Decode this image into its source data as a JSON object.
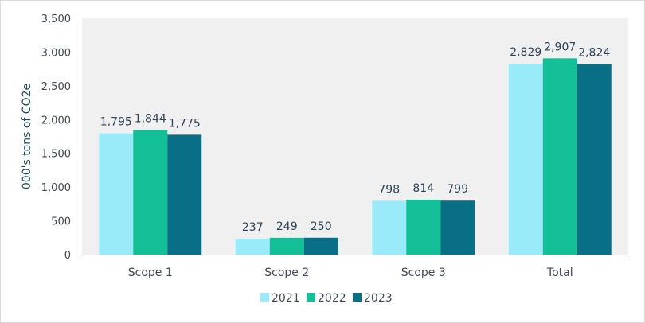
{
  "chart_data": {
    "type": "bar",
    "title": "",
    "xlabel": "",
    "ylabel": "000's tons of CO2e",
    "ylim": [
      0,
      3500
    ],
    "yticks": [
      0,
      500,
      1000,
      1500,
      2000,
      2500,
      3000,
      3500
    ],
    "ytick_labels": [
      "0",
      "500",
      "1,000",
      "1,500",
      "2,000",
      "2,500",
      "3,000",
      "3,500"
    ],
    "grid": false,
    "legend_position": "bottom",
    "categories": [
      "Scope 1",
      "Scope 2",
      "Scope 3",
      "Total"
    ],
    "series": [
      {
        "name": "2021",
        "color": "#99ebfa",
        "values": [
          1795,
          237,
          798,
          2829
        ],
        "labels": [
          "1,795",
          "237",
          "798",
          "2,829"
        ]
      },
      {
        "name": "2022",
        "color": "#12bf96",
        "values": [
          1844,
          249,
          814,
          2907
        ],
        "labels": [
          "1,844",
          "249",
          "814",
          "2,907"
        ]
      },
      {
        "name": "2023",
        "color": "#086f86",
        "values": [
          1775,
          250,
          799,
          2824
        ],
        "labels": [
          "1,775",
          "250",
          "799",
          "2,824"
        ]
      }
    ],
    "plot_background": "#f0f0f0",
    "axis_color": "#7f7f7f"
  }
}
